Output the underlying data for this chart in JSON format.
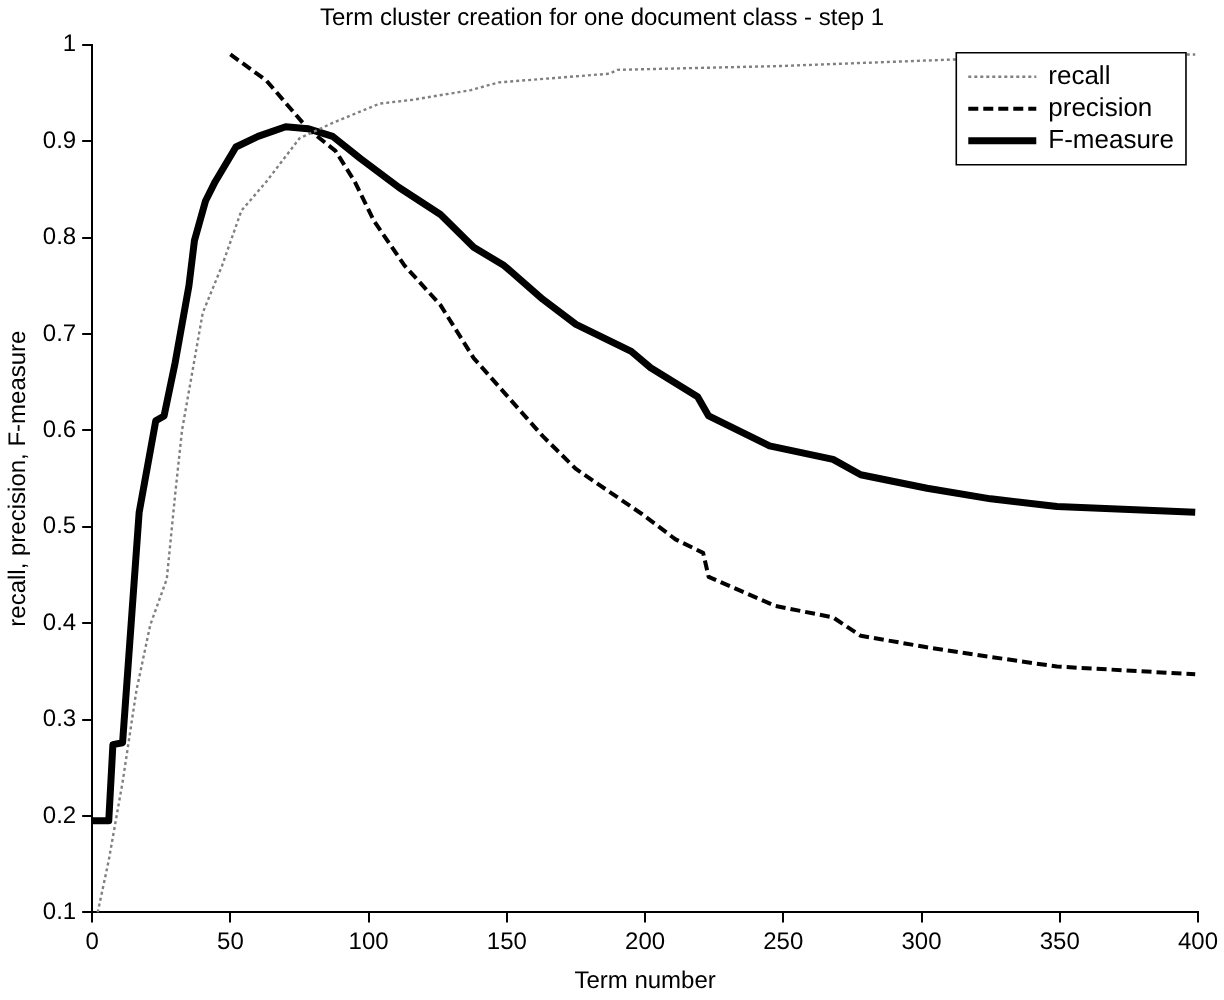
{
  "chart_data": {
    "type": "line",
    "title": "Term cluster creation for one document class - step 1",
    "xlabel": "Term number",
    "ylabel": "recall, precision, F-measure",
    "xlim": [
      0,
      400
    ],
    "xticks": [
      0,
      50,
      100,
      150,
      200,
      250,
      300,
      350,
      400
    ],
    "ylim": [
      0.1,
      1
    ],
    "yticks": [
      0.1,
      0.2,
      0.3,
      0.4,
      0.5,
      0.6,
      0.7,
      0.8,
      0.9,
      1
    ],
    "grid": false,
    "legend": "top right",
    "marker": "none",
    "series": [
      {
        "name": "recall",
        "color": "#808080",
        "line_style": "dotted",
        "x": [
          2,
          6,
          11,
          16,
          21,
          27,
          30,
          32.5,
          40,
          47,
          54,
          63,
          75,
          87,
          104,
          116,
          137,
          147,
          187,
          190,
          249,
          342,
          399
        ],
        "values": [
          0.1,
          0.154,
          0.235,
          0.33,
          0.398,
          0.446,
          0.533,
          0.6,
          0.722,
          0.771,
          0.828,
          0.858,
          0.903,
          0.919,
          0.939,
          0.943,
          0.953,
          0.961,
          0.97,
          0.974,
          0.978,
          0.988,
          0.99
        ]
      },
      {
        "name": "precision",
        "color": "#000000",
        "line_style": "dashed",
        "x": [
          50,
          63,
          78,
          88,
          95,
          102,
          113,
          126,
          138,
          163,
          175,
          199,
          211,
          221,
          223,
          247,
          268,
          278,
          302,
          325,
          349,
          399
        ],
        "values": [
          0.99,
          0.963,
          0.913,
          0.89,
          0.858,
          0.817,
          0.771,
          0.73,
          0.675,
          0.594,
          0.56,
          0.513,
          0.487,
          0.473,
          0.448,
          0.418,
          0.406,
          0.387,
          0.375,
          0.365,
          0.355,
          0.347
        ]
      },
      {
        "name": "F-measure",
        "color": "#000000",
        "line_style": "solid",
        "x": [
          0,
          6,
          7.5,
          11,
          17,
          23,
          26,
          30,
          35,
          37,
          41,
          44.5,
          52,
          60,
          70,
          78,
          87,
          97,
          111,
          126,
          138,
          149,
          163,
          175,
          195,
          202,
          219,
          223,
          245,
          268,
          278,
          302,
          325,
          349,
          399
        ],
        "values": [
          0.195,
          0.195,
          0.274,
          0.276,
          0.515,
          0.61,
          0.615,
          0.67,
          0.75,
          0.797,
          0.838,
          0.858,
          0.894,
          0.905,
          0.915,
          0.913,
          0.905,
          0.882,
          0.852,
          0.824,
          0.79,
          0.771,
          0.736,
          0.71,
          0.682,
          0.665,
          0.635,
          0.615,
          0.584,
          0.57,
          0.554,
          0.54,
          0.529,
          0.521,
          0.515
        ]
      }
    ]
  }
}
